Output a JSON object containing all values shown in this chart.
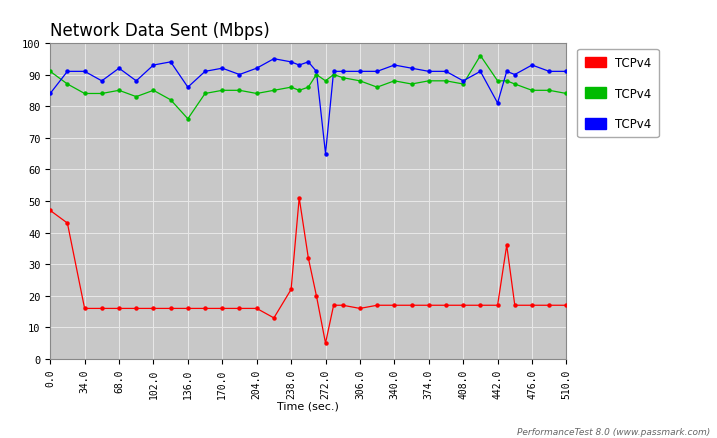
{
  "title": "Network Data Sent (Mbps)",
  "xlabel": "Time (sec.)",
  "xlim": [
    0.0,
    510.0
  ],
  "ylim": [
    0,
    100
  ],
  "yticks": [
    0,
    10,
    20,
    30,
    40,
    50,
    60,
    70,
    80,
    90,
    100
  ],
  "xtick_labels": [
    "0.0",
    "34.0",
    "68.0",
    "102.0",
    "136.0",
    "170.0",
    "204.0",
    "238.0",
    "272.0",
    "306.0",
    "340.0",
    "374.0",
    "408.0",
    "442.0",
    "476.0",
    "510.0"
  ],
  "xtick_values": [
    0.0,
    34.0,
    68.0,
    102.0,
    136.0,
    170.0,
    204.0,
    238.0,
    272.0,
    306.0,
    340.0,
    374.0,
    408.0,
    442.0,
    476.0,
    510.0
  ],
  "outer_bg_color": "#ffffff",
  "plot_bg_color": "#c8c8c8",
  "grid_color": "#e8e8e8",
  "legend_colors": [
    "#ff0000",
    "#00bb00",
    "#0000ff"
  ],
  "legend_labels": [
    "TCPv4",
    "TCPv4",
    "TCPv4"
  ],
  "watermark": "PerformanceTest 8.0 (www.passmark.com)",
  "red_x": [
    0,
    17,
    34,
    51,
    68,
    85,
    102,
    119,
    136,
    153,
    170,
    187,
    204,
    221,
    238,
    246,
    255,
    263,
    272,
    280,
    289,
    306,
    323,
    340,
    357,
    374,
    391,
    408,
    425,
    442,
    451,
    459,
    476,
    493,
    510
  ],
  "red_y": [
    47,
    43,
    16,
    16,
    16,
    16,
    16,
    16,
    16,
    16,
    16,
    16,
    16,
    13,
    22,
    51,
    32,
    20,
    5,
    17,
    17,
    16,
    17,
    17,
    17,
    17,
    17,
    17,
    17,
    17,
    36,
    17,
    17,
    17,
    17
  ],
  "green_x": [
    0,
    17,
    34,
    51,
    68,
    85,
    102,
    119,
    136,
    153,
    170,
    187,
    204,
    221,
    238,
    246,
    255,
    263,
    272,
    280,
    289,
    306,
    323,
    340,
    357,
    374,
    391,
    408,
    425,
    442,
    451,
    459,
    476,
    493,
    510
  ],
  "green_y": [
    91,
    87,
    84,
    84,
    85,
    83,
    85,
    82,
    76,
    84,
    85,
    85,
    84,
    85,
    86,
    85,
    86,
    90,
    88,
    90,
    89,
    88,
    86,
    88,
    87,
    88,
    88,
    87,
    96,
    88,
    88,
    87,
    85,
    85,
    84
  ],
  "blue_x": [
    0,
    17,
    34,
    51,
    68,
    85,
    102,
    119,
    136,
    153,
    170,
    187,
    204,
    221,
    238,
    246,
    255,
    263,
    272,
    280,
    289,
    306,
    323,
    340,
    357,
    374,
    391,
    408,
    425,
    442,
    451,
    459,
    476,
    493,
    510
  ],
  "blue_y": [
    84,
    91,
    91,
    88,
    92,
    88,
    93,
    94,
    86,
    91,
    92,
    90,
    92,
    95,
    94,
    93,
    94,
    91,
    65,
    91,
    91,
    91,
    91,
    93,
    92,
    91,
    91,
    88,
    91,
    81,
    91,
    90,
    93,
    91,
    91
  ]
}
